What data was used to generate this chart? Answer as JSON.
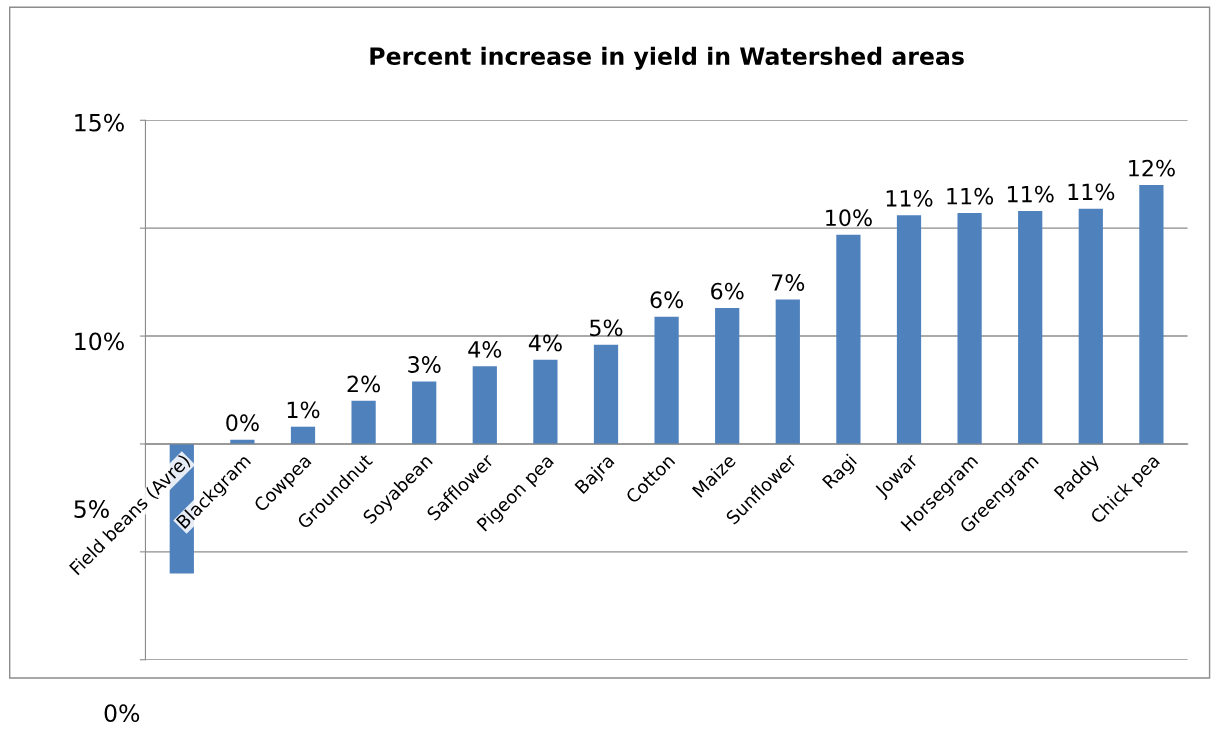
{
  "chart_data": {
    "type": "bar",
    "title": "Percent increase in yield in Watershed areas",
    "categories": [
      "Field beans (Avre)",
      "Blackgram",
      "Cowpea",
      "Groundnut",
      "Soyabean",
      "Safflower",
      "Pigeon pea",
      "Bajra",
      "Cotton",
      "Maize",
      "Sunflower",
      "Ragi",
      "Jowar",
      "Horsegram",
      "Greengram",
      "Paddy",
      "Chick pea"
    ],
    "values": [
      -6.0,
      0.2,
      0.8,
      2.0,
      2.9,
      3.6,
      3.9,
      4.6,
      5.9,
      6.3,
      6.7,
      9.7,
      10.6,
      10.7,
      10.8,
      10.9,
      12.0
    ],
    "value_labels": [
      null,
      "0%",
      "1%",
      "2%",
      "3%",
      "4%",
      "4%",
      "5%",
      "6%",
      "6%",
      "7%",
      "10%",
      "11%",
      "11%",
      "11%",
      "11%",
      "12%"
    ],
    "color": "#4f81bd",
    "ylim": [
      -10,
      15
    ],
    "yticks": [
      {
        "value": -10,
        "label": null
      },
      {
        "value": -5,
        "label": null
      },
      {
        "value": 0,
        "label": null
      },
      {
        "value": 5,
        "label": null
      },
      {
        "value": 10,
        "label": null
      },
      {
        "value": 15,
        "label": null
      }
    ],
    "grid": "y",
    "annotations": [
      "15%",
      "10%",
      "5%",
      "0%"
    ]
  }
}
